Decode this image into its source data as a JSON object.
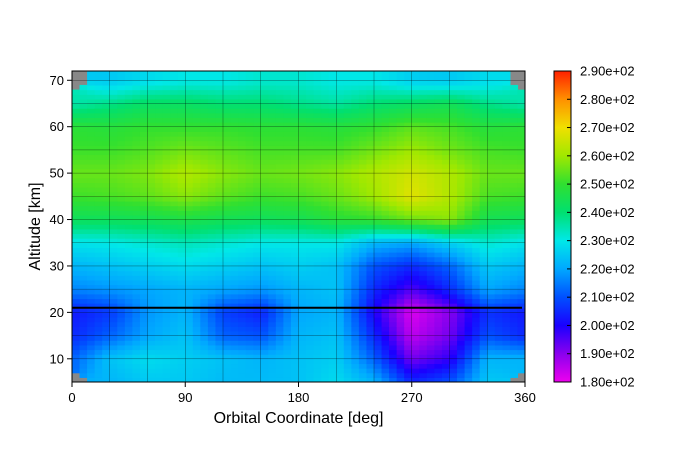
{
  "chart_data": {
    "type": "heatmap",
    "title": "",
    "xlabel": "Orbital Coordinate [deg]",
    "ylabel": "Altitude [km]",
    "xlim": [
      0,
      360
    ],
    "ylim": [
      5,
      72
    ],
    "x_ticks": [
      0,
      90,
      180,
      270,
      360
    ],
    "x_tick_labels": [
      "0",
      "90",
      "180",
      "270",
      "360"
    ],
    "y_ticks": [
      10,
      20,
      30,
      40,
      50,
      60,
      70
    ],
    "y_tick_labels": [
      "10",
      "20",
      "30",
      "40",
      "50",
      "60",
      "70"
    ],
    "grid": true,
    "grid_x_step": 30,
    "grid_y_step": 5,
    "no_data_color": "#888888",
    "colorbar": {
      "min": 180,
      "max": 290,
      "ticks": [
        180,
        190,
        200,
        210,
        220,
        230,
        240,
        250,
        260,
        270,
        280,
        290
      ],
      "tick_labels": [
        "1.80e+02",
        "1.90e+02",
        "2.00e+02",
        "2.10e+02",
        "2.20e+02",
        "2.30e+02",
        "2.40e+02",
        "2.50e+02",
        "2.60e+02",
        "2.70e+02",
        "2.80e+02",
        "2.90e+02"
      ],
      "colormap": [
        "#ee00ee",
        "#8a00ee",
        "#1a00ff",
        "#0050ff",
        "#00a8ff",
        "#00e8e8",
        "#00e070",
        "#30e030",
        "#a0e800",
        "#f0e000",
        "#ff9000",
        "#ff2000"
      ]
    },
    "reference_line": {
      "altitude": 21,
      "x_start": 0,
      "x_end": 360,
      "color": "#000000"
    },
    "x": [
      0,
      30,
      60,
      90,
      120,
      150,
      180,
      210,
      240,
      270,
      300,
      330,
      360
    ],
    "y": [
      5,
      10,
      15,
      20,
      25,
      30,
      35,
      40,
      45,
      50,
      55,
      60,
      65,
      70
    ],
    "z": [
      [
        null,
        222,
        225,
        225,
        223,
        223,
        224,
        228,
        222,
        205,
        210,
        225,
        null
      ],
      [
        212,
        224,
        228,
        226,
        224,
        222,
        224,
        226,
        212,
        192,
        198,
        222,
        222
      ],
      [
        205,
        212,
        220,
        224,
        212,
        210,
        222,
        224,
        205,
        185,
        192,
        210,
        205
      ],
      [
        203,
        207,
        218,
        222,
        208,
        204,
        220,
        222,
        200,
        182,
        190,
        206,
        203
      ],
      [
        216,
        218,
        220,
        222,
        220,
        218,
        222,
        224,
        205,
        195,
        205,
        220,
        216
      ],
      [
        222,
        224,
        226,
        228,
        226,
        224,
        226,
        224,
        210,
        205,
        212,
        225,
        222
      ],
      [
        229,
        230,
        232,
        234,
        232,
        230,
        230,
        230,
        222,
        220,
        226,
        232,
        229
      ],
      [
        243,
        243,
        244,
        246,
        244,
        243,
        244,
        248,
        250,
        255,
        258,
        244,
        243
      ],
      [
        251,
        252,
        254,
        258,
        254,
        251,
        252,
        255,
        260,
        268,
        262,
        252,
        251
      ],
      [
        255,
        255,
        257,
        262,
        258,
        255,
        256,
        258,
        262,
        266,
        262,
        255,
        255
      ],
      [
        251,
        251,
        253,
        256,
        254,
        252,
        252,
        252,
        256,
        260,
        256,
        252,
        251
      ],
      [
        249,
        248,
        250,
        250,
        250,
        249,
        249,
        248,
        250,
        254,
        252,
        248,
        249
      ],
      [
        235,
        238,
        242,
        242,
        240,
        240,
        238,
        236,
        240,
        242,
        244,
        238,
        235
      ],
      [
        null,
        225,
        228,
        230,
        230,
        232,
        232,
        230,
        230,
        226,
        225,
        228,
        null
      ]
    ]
  }
}
